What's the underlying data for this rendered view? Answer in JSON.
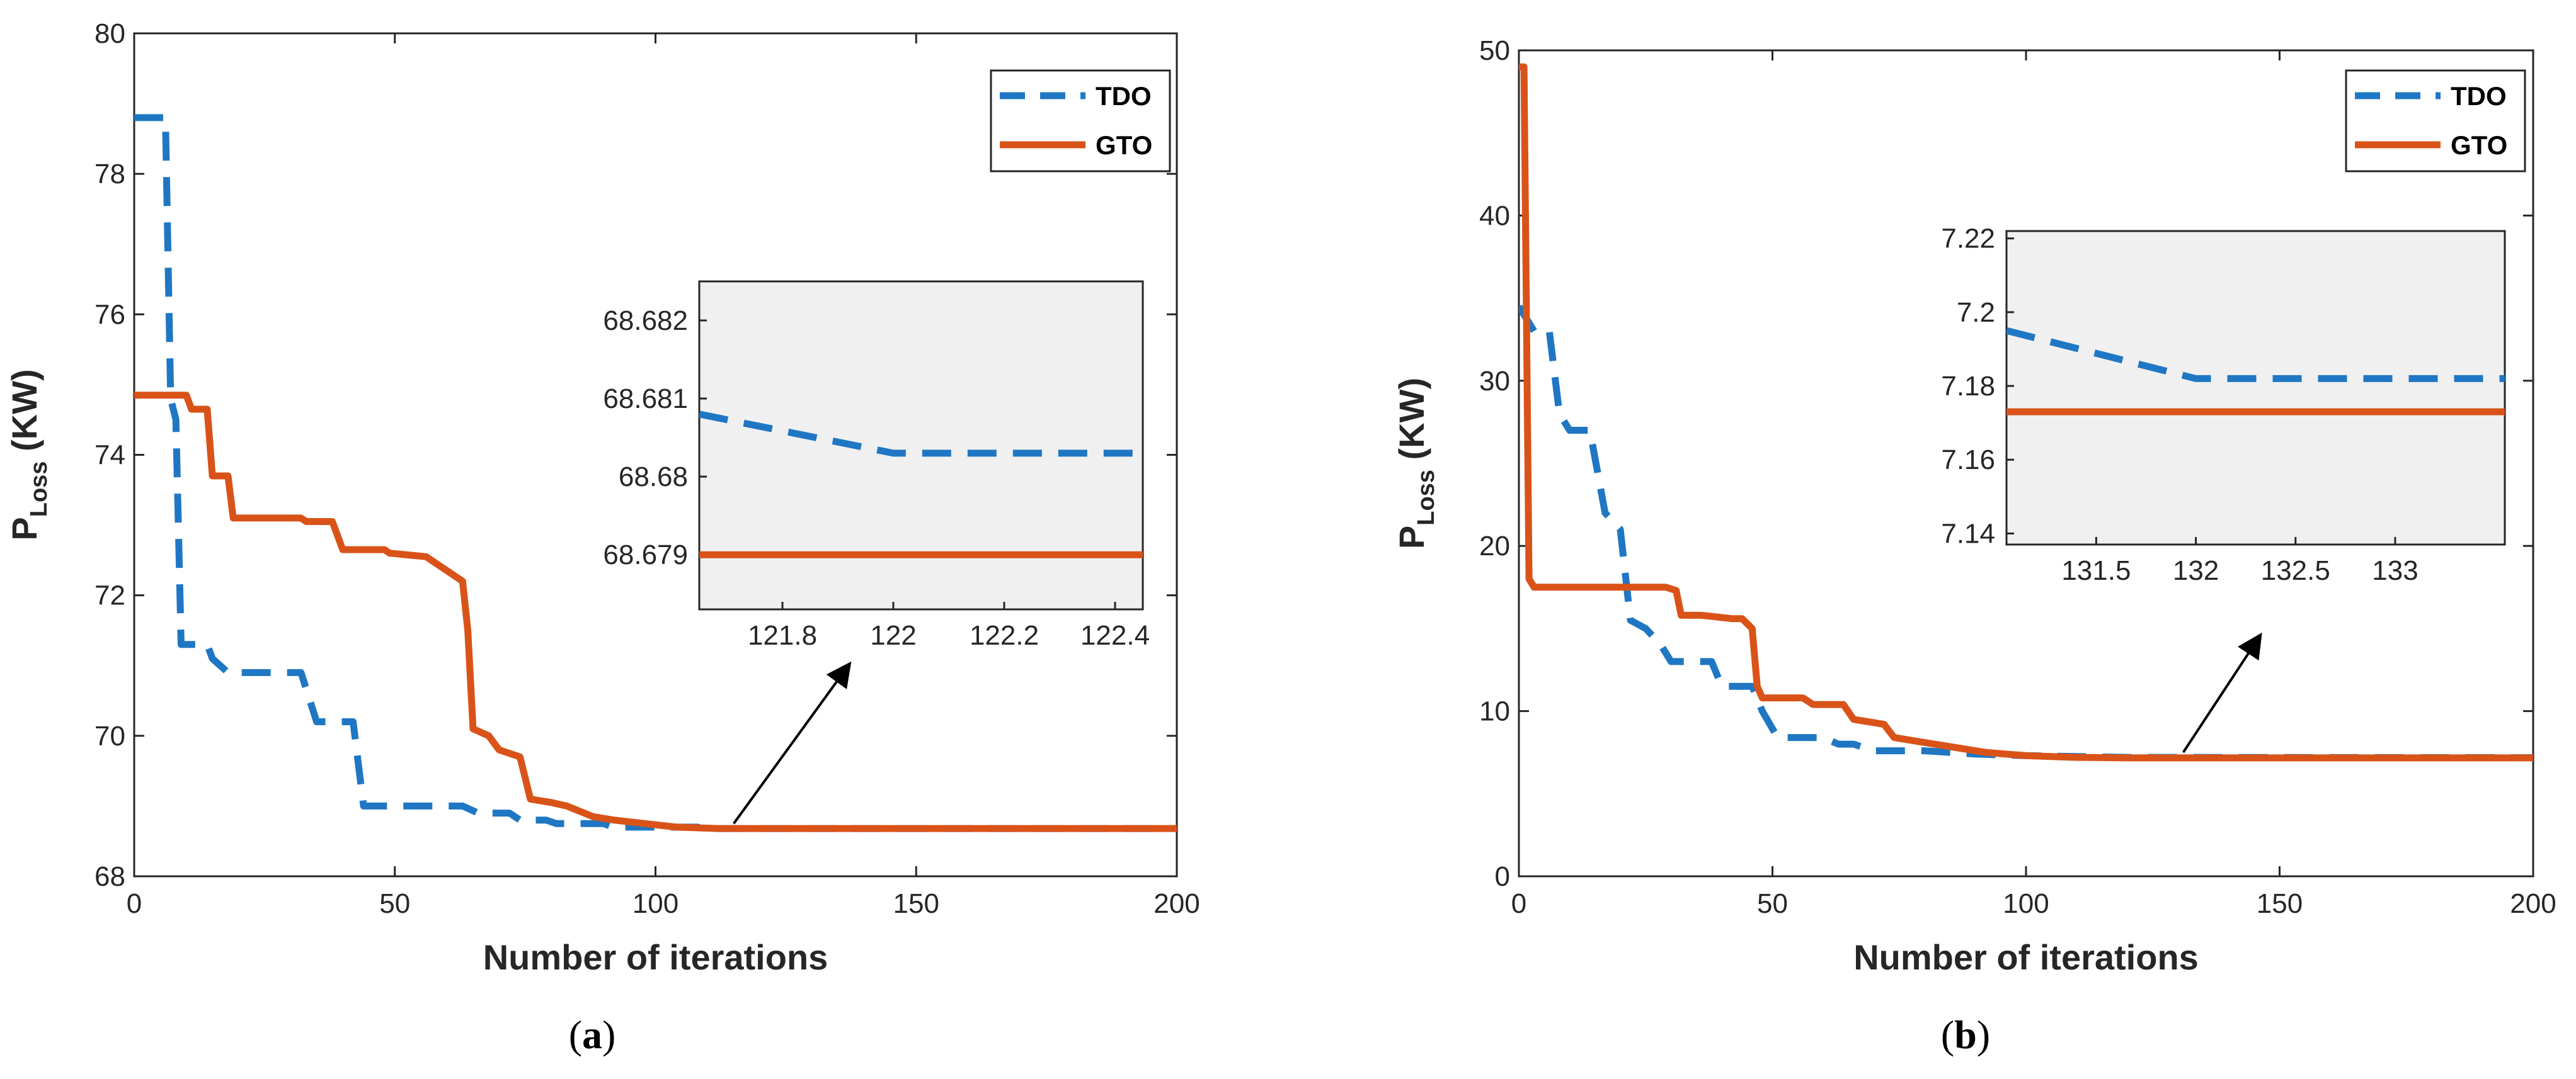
{
  "colors": {
    "TDO": "#1f77c4",
    "GTO": "#d95319",
    "inset_bg": "#f0f0f0"
  },
  "chart_data": [
    {
      "id": "a",
      "type": "line",
      "caption": {
        "open": "(",
        "letter": "a",
        "close": ")"
      },
      "xlabel": "Number of iterations",
      "ylabel": {
        "main": "P",
        "sub": "Loss",
        "unit": " (KW)"
      },
      "xlim": [
        0,
        200
      ],
      "ylim": [
        68,
        80
      ],
      "xticks": [
        0,
        50,
        100,
        150,
        200
      ],
      "xtick_labels": [
        "0",
        "50",
        "100",
        "150",
        "200"
      ],
      "yticks": [
        68,
        70,
        72,
        74,
        76,
        78,
        80
      ],
      "ytick_labels": [
        "68",
        "70",
        "72",
        "74",
        "76",
        "78",
        "80"
      ],
      "legend": {
        "position": "top-right",
        "entries": [
          "TDO",
          "GTO"
        ]
      },
      "series": [
        {
          "name": "TDO",
          "style": "dashed",
          "points": [
            [
              0,
              78.8
            ],
            [
              6,
              78.8
            ],
            [
              7,
              74.8
            ],
            [
              8,
              74.5
            ],
            [
              9,
              71.3
            ],
            [
              14,
              71.3
            ],
            [
              15,
              71.1
            ],
            [
              18,
              70.9
            ],
            [
              32,
              70.9
            ],
            [
              35,
              70.2
            ],
            [
              42,
              70.2
            ],
            [
              44,
              69.0
            ],
            [
              63,
              69.0
            ],
            [
              66,
              68.9
            ],
            [
              72,
              68.9
            ],
            [
              74,
              68.8
            ],
            [
              79,
              68.8
            ],
            [
              81,
              68.75
            ],
            [
              90,
              68.75
            ],
            [
              92,
              68.7
            ],
            [
              108,
              68.7
            ],
            [
              110,
              68.68
            ],
            [
              200,
              68.68
            ]
          ]
        },
        {
          "name": "GTO",
          "style": "solid",
          "points": [
            [
              0,
              74.85
            ],
            [
              10,
              74.85
            ],
            [
              11,
              74.65
            ],
            [
              14,
              74.65
            ],
            [
              15,
              73.7
            ],
            [
              18,
              73.7
            ],
            [
              19,
              73.1
            ],
            [
              32,
              73.1
            ],
            [
              33,
              73.05
            ],
            [
              38,
              73.05
            ],
            [
              40,
              72.65
            ],
            [
              48,
              72.65
            ],
            [
              49,
              72.6
            ],
            [
              56,
              72.55
            ],
            [
              61,
              72.3
            ],
            [
              63,
              72.2
            ],
            [
              64,
              71.5
            ],
            [
              65,
              70.1
            ],
            [
              68,
              70.0
            ],
            [
              70,
              69.8
            ],
            [
              74,
              69.7
            ],
            [
              76,
              69.1
            ],
            [
              80,
              69.05
            ],
            [
              83,
              69.0
            ],
            [
              88,
              68.85
            ],
            [
              92,
              68.8
            ],
            [
              98,
              68.75
            ],
            [
              104,
              68.7
            ],
            [
              112,
              68.68
            ],
            [
              200,
              68.68
            ]
          ]
        }
      ],
      "inset": {
        "xlim": [
          121.65,
          122.45
        ],
        "ylim": [
          68.6783,
          68.6825
        ],
        "xticks": [
          121.8,
          122,
          122.2,
          122.4
        ],
        "xtick_labels": [
          "121.8",
          "122",
          "122.2",
          "122.4"
        ],
        "yticks": [
          68.679,
          68.68,
          68.681,
          68.682
        ],
        "ytick_labels": [
          "68.679",
          "68.68",
          "68.681",
          "68.682"
        ],
        "series": [
          {
            "name": "TDO",
            "style": "dashed",
            "points": [
              [
                121.65,
                68.6808
              ],
              [
                122,
                68.6803
              ],
              [
                122.45,
                68.6803
              ]
            ]
          },
          {
            "name": "GTO",
            "style": "solid",
            "points": [
              [
                121.65,
                68.679
              ],
              [
                122.45,
                68.679
              ]
            ]
          }
        ]
      },
      "arrow": {
        "from": [
          115,
          68.75
        ],
        "to": [
          137,
          71.0
        ]
      }
    },
    {
      "id": "b",
      "type": "line",
      "caption": {
        "open": "(",
        "letter": "b",
        "close": ")"
      },
      "xlabel": "Number of iterations",
      "ylabel": {
        "main": "P",
        "sub": "Loss",
        "unit": " (KW)"
      },
      "xlim": [
        0,
        200
      ],
      "ylim": [
        0,
        50
      ],
      "xticks": [
        0,
        50,
        100,
        150,
        200
      ],
      "xtick_labels": [
        "0",
        "50",
        "100",
        "150",
        "200"
      ],
      "yticks": [
        0,
        10,
        20,
        30,
        40,
        50
      ],
      "ytick_labels": [
        "0",
        "10",
        "20",
        "30",
        "40",
        "50"
      ],
      "legend": {
        "position": "top-right",
        "entries": [
          "TDO",
          "GTO"
        ]
      },
      "series": [
        {
          "name": "TDO",
          "style": "dashed",
          "points": [
            [
              0,
              34.5
            ],
            [
              3,
              33
            ],
            [
              6,
              33
            ],
            [
              8,
              28
            ],
            [
              10,
              27
            ],
            [
              14,
              27
            ],
            [
              17,
              22
            ],
            [
              20,
              21
            ],
            [
              22,
              15.5
            ],
            [
              25,
              15
            ],
            [
              28,
              14
            ],
            [
              30,
              13
            ],
            [
              38,
              13
            ],
            [
              40,
              11.5
            ],
            [
              46,
              11.5
            ],
            [
              48,
              10
            ],
            [
              51,
              8.4
            ],
            [
              60,
              8.4
            ],
            [
              63,
              8.0
            ],
            [
              66,
              8.0
            ],
            [
              70,
              7.6
            ],
            [
              80,
              7.6
            ],
            [
              90,
              7.4
            ],
            [
              100,
              7.3
            ],
            [
              120,
              7.2
            ],
            [
              200,
              7.18
            ]
          ]
        },
        {
          "name": "GTO",
          "style": "solid",
          "points": [
            [
              0,
              49
            ],
            [
              1,
              49
            ],
            [
              2,
              18
            ],
            [
              3,
              17.5
            ],
            [
              29,
              17.5
            ],
            [
              31,
              17.3
            ],
            [
              32,
              15.8
            ],
            [
              36,
              15.8
            ],
            [
              42,
              15.6
            ],
            [
              44,
              15.6
            ],
            [
              46,
              15
            ],
            [
              47,
              11.5
            ],
            [
              48,
              10.8
            ],
            [
              56,
              10.8
            ],
            [
              58,
              10.4
            ],
            [
              64,
              10.4
            ],
            [
              66,
              9.5
            ],
            [
              72,
              9.2
            ],
            [
              74,
              8.4
            ],
            [
              80,
              8.1
            ],
            [
              86,
              7.8
            ],
            [
              92,
              7.5
            ],
            [
              100,
              7.3
            ],
            [
              110,
              7.2
            ],
            [
              120,
              7.17
            ],
            [
              200,
              7.17
            ]
          ]
        }
      ],
      "inset": {
        "xlim": [
          131.05,
          133.55
        ],
        "ylim": [
          7.137,
          7.222
        ],
        "xticks": [
          131.5,
          132,
          132.5,
          133
        ],
        "xtick_labels": [
          "131.5",
          "132",
          "132.5",
          "133"
        ],
        "yticks": [
          7.14,
          7.16,
          7.18,
          7.2,
          7.22
        ],
        "ytick_labels": [
          "7.14",
          "7.16",
          "7.18",
          "7.2",
          "7.22"
        ],
        "series": [
          {
            "name": "TDO",
            "style": "dashed",
            "points": [
              [
                131.05,
                7.195
              ],
              [
                132,
                7.182
              ],
              [
                133.55,
                7.182
              ]
            ]
          },
          {
            "name": "GTO",
            "style": "solid",
            "points": [
              [
                131.05,
                7.173
              ],
              [
                133.55,
                7.173
              ]
            ]
          }
        ]
      },
      "arrow": {
        "from": [
          131,
          7.5
        ],
        "to": [
          146,
          14.5
        ]
      }
    }
  ]
}
